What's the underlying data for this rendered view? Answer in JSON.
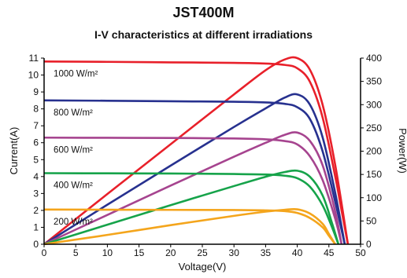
{
  "chart_data": {
    "type": "line",
    "title": "JST400M",
    "subtitle": "I-V characteristics at different irradiations",
    "xlabel": "Voltage(V)",
    "ylabel_left": "Current(A)",
    "ylabel_right": "Power(W)",
    "xlim": [
      0,
      50
    ],
    "ylim_left": [
      0,
      11
    ],
    "ylim_right": [
      0,
      400
    ],
    "x_ticks": [
      "0",
      "5",
      "10",
      "15",
      "20",
      "25",
      "30",
      "35",
      "40",
      "45",
      "50"
    ],
    "y_left_ticks": [
      "0",
      "1",
      "2",
      "3",
      "4",
      "5",
      "6",
      "7",
      "8",
      "9",
      "10",
      "11"
    ],
    "y_right_ticks": [
      "0",
      "50",
      "100",
      "150",
      "200",
      "250",
      "300",
      "350",
      "400"
    ],
    "grid": false,
    "series": [
      {
        "name": "1000 W/m²",
        "color": "#e8202a",
        "iv_curve": {
          "x": [
            0,
            10,
            20,
            30,
            35,
            38,
            40,
            42,
            44,
            46,
            47,
            48
          ],
          "y": [
            10.8,
            10.78,
            10.75,
            10.72,
            10.68,
            10.6,
            10.4,
            9.6,
            7.5,
            4.0,
            2.0,
            0
          ]
        },
        "power_curve": {
          "x": [
            0,
            10,
            20,
            30,
            35,
            38,
            40,
            42,
            44,
            46,
            48
          ],
          "y": [
            0,
            108,
            215,
            322,
            374,
            397,
            400,
            375,
            300,
            170,
            0
          ]
        }
      },
      {
        "name": "800 W/m²",
        "color": "#27318f",
        "iv_curve": {
          "x": [
            0,
            10,
            20,
            30,
            35,
            38,
            40,
            42,
            44,
            46,
            47.5
          ],
          "y": [
            8.5,
            8.48,
            8.45,
            8.42,
            8.38,
            8.3,
            8.1,
            7.4,
            5.5,
            2.5,
            0
          ]
        },
        "power_curve": {
          "x": [
            0,
            10,
            20,
            30,
            35,
            38,
            40,
            42,
            44,
            46,
            47.5
          ],
          "y": [
            0,
            85,
            169,
            252,
            292,
            315,
            322,
            300,
            230,
            110,
            0
          ]
        }
      },
      {
        "name": "600 W/m²",
        "color": "#a6448f",
        "iv_curve": {
          "x": [
            0,
            10,
            20,
            30,
            35,
            38,
            40,
            42,
            44,
            46,
            47
          ],
          "y": [
            6.3,
            6.29,
            6.28,
            6.25,
            6.2,
            6.1,
            5.9,
            5.2,
            3.8,
            1.5,
            0
          ]
        },
        "power_curve": {
          "x": [
            0,
            10,
            20,
            30,
            35,
            38,
            40,
            42,
            44,
            46,
            47
          ],
          "y": [
            0,
            63,
            126,
            188,
            218,
            235,
            240,
            222,
            170,
            70,
            0
          ]
        }
      },
      {
        "name": "400 W/m²",
        "color": "#16a34a",
        "iv_curve": {
          "x": [
            0,
            10,
            20,
            30,
            35,
            38,
            40,
            42,
            44,
            45.5,
            46.5
          ],
          "y": [
            4.2,
            4.19,
            4.18,
            4.15,
            4.12,
            4.05,
            3.9,
            3.4,
            2.3,
            1.0,
            0
          ]
        },
        "power_curve": {
          "x": [
            0,
            10,
            20,
            30,
            35,
            38,
            40,
            42,
            44,
            45.5,
            46.5
          ],
          "y": [
            0,
            42,
            84,
            125,
            145,
            155,
            158,
            145,
            105,
            45,
            0
          ]
        }
      },
      {
        "name": "200 W/m²",
        "color": "#f4a51c",
        "iv_curve": {
          "x": [
            0,
            10,
            20,
            30,
            35,
            38,
            40,
            42,
            44,
            45,
            46
          ],
          "y": [
            2.05,
            2.04,
            2.03,
            2.02,
            2.0,
            1.96,
            1.85,
            1.55,
            1.0,
            0.5,
            0
          ]
        },
        "power_curve": {
          "x": [
            0,
            10,
            20,
            30,
            35,
            38,
            40,
            42,
            44,
            45,
            46
          ],
          "y": [
            0,
            20,
            41,
            61,
            70,
            74,
            75,
            66,
            44,
            22,
            0
          ]
        }
      }
    ]
  }
}
